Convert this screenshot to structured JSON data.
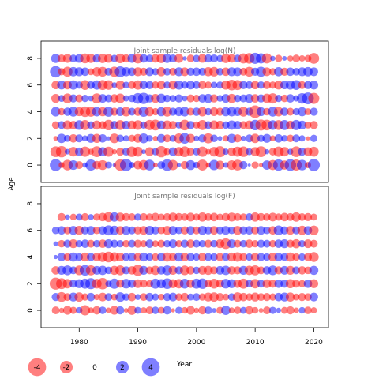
{
  "chart_data": {
    "type": "scatter",
    "encoding": "bubble grid: x = year, y = age, bubble area proportional to |residual|, red = negative, blue = positive",
    "ylabel": "Age",
    "xlabel": "Year",
    "xlim": [
      1973.5,
      2022.5
    ],
    "ylim": [
      -1.3,
      9.3
    ],
    "x_ticks": [
      1980,
      1990,
      2000,
      2010,
      2020
    ],
    "y_ticks": [
      0,
      2,
      4,
      6,
      8
    ],
    "years": [
      1976,
      1977,
      1978,
      1979,
      1980,
      1981,
      1982,
      1983,
      1984,
      1985,
      1986,
      1987,
      1988,
      1989,
      1990,
      1991,
      1992,
      1993,
      1994,
      1995,
      1996,
      1997,
      1998,
      1999,
      2000,
      2001,
      2002,
      2003,
      2004,
      2005,
      2006,
      2007,
      2008,
      2009,
      2010,
      2011,
      2012,
      2013,
      2014,
      2015,
      2016,
      2017,
      2018,
      2019,
      2020
    ],
    "colors": {
      "negative": "#ff0000",
      "positive": "#0000ff",
      "opacity": 0.5
    },
    "panels": [
      {
        "title": "Joint sample residuals log(N)",
        "ages": [
          0,
          1,
          2,
          3,
          4,
          5,
          6,
          7,
          8
        ],
        "residuals": [
          [
            3.2,
            -0.8,
            -2.5,
            2.1,
            -1.4,
            0.6,
            2.8,
            -1.6,
            -2.2,
            1.1,
            0.3,
            -2.9,
            3.4,
            0.9,
            -1.7,
            -2.3,
            2.6,
            -0.5,
            1.4,
            3.0,
            -2.4,
            0.4,
            -1.5,
            2.2,
            1.0,
            -2.7,
            -0.6,
            2.4,
            -1.8,
            0.7,
            -2.1,
            -2.6,
            1.5,
            0.2,
            -1.2,
            -0.4,
            2.0,
            -2.3,
            2.9,
            -1.9,
            3.1,
            -2.8,
            2.5,
            -0.9,
            3.3
          ],
          [
            -2.6,
            -2.9,
            0.7,
            -2.1,
            1.6,
            -2.4,
            -0.8,
            -2.7,
            1.9,
            -2.3,
            -0.6,
            -1.5,
            1.4,
            -2.5,
            -2.2,
            0.5,
            -1.8,
            1.2,
            -2.9,
            -1.1,
            1.7,
            -2.0,
            -2.6,
            -1.4,
            1.3,
            -2.4,
            -0.7,
            -2.1,
            -2.8,
            0.9,
            -1.6,
            -2.3,
            -2.5,
            1.1,
            -1.9,
            -2.7,
            0.6,
            -1.3,
            -2.4,
            -2.0,
            0.8,
            -2.6,
            1.5,
            -1.7,
            -2.2
          ],
          [
            -0.5,
            2.0,
            1.1,
            -1.6,
            1.4,
            0.8,
            1.8,
            -1.9,
            1.6,
            0.4,
            -2.1,
            1.3,
            0.9,
            -1.2,
            -1.7,
            2.2,
            1.0,
            -0.6,
            1.7,
            -1.4,
            1.1,
            -2.2,
            2.6,
            -1.8,
            0.7,
            1.5,
            -2.3,
            1.3,
            0.5,
            -0.9,
            1.9,
            -1.5,
            0.6,
            1.4,
            -2.0,
            1.2,
            1.8,
            -0.8,
            1.6,
            1.0,
            -1.3,
            1.4,
            0.9,
            -0.4,
            1.2
          ],
          [
            -1.3,
            1.4,
            -2.0,
            -1.6,
            2.1,
            -2.3,
            1.3,
            -1.9,
            -1.4,
            -2.5,
            1.6,
            -2.2,
            1.7,
            -1.8,
            -2.1,
            1.2,
            -2.4,
            -2.7,
            1.8,
            -2.0,
            -1.5,
            1.1,
            -2.6,
            1.5,
            -1.2,
            -2.3,
            1.4,
            -2.0,
            -1.7,
            1.3,
            2.0,
            1.6,
            -1.4,
            -1.9,
            2.5,
            -2.8,
            -2.6,
            2.1,
            -2.2,
            2.3,
            -1.7,
            2.4,
            1.8,
            -1.1,
            -1.5
          ],
          [
            2.1,
            -1.3,
            1.6,
            2.2,
            -1.8,
            -2.5,
            -2.3,
            2.0,
            -1.9,
            2.3,
            -1.5,
            1.7,
            -2.1,
            1.4,
            -1.6,
            2.4,
            -1.9,
            -1.2,
            1.9,
            -2.2,
            1.5,
            1.8,
            2.1,
            -1.4,
            1.6,
            -2.0,
            1.3,
            -1.7,
            -1.5,
            1.9,
            2.0,
            1.7,
            -2.2,
            1.5,
            -3.6,
            1.8,
            -1.3,
            2.2,
            -2.0,
            1.6,
            -1.4,
            1.2,
            1.9,
            -1.1,
            1.5
          ],
          [
            -1.8,
            1.1,
            -2.2,
            1.5,
            -1.4,
            1.2,
            0.8,
            -2.3,
            1.7,
            1.4,
            -1.6,
            -2.1,
            0.9,
            1.3,
            2.6,
            2.9,
            1.5,
            -1.8,
            2.0,
            1.3,
            1.1,
            1.5,
            0.8,
            -1.4,
            -1.2,
            1.6,
            1.9,
            -1.5,
            1.0,
            1.7,
            -1.9,
            1.3,
            1.4,
            1.8,
            -1.6,
            1.5,
            -2.0,
            -2.4,
            1.2,
            -1.3,
            1.6,
            0.9,
            2.5,
            3.2,
            -2.8
          ],
          [
            -1.6,
            1.8,
            -1.7,
            2.0,
            1.2,
            -2.2,
            1.4,
            2.0,
            -2.3,
            -2.1,
            0.7,
            -1.9,
            1.1,
            -1.4,
            -2.0,
            1.6,
            1.5,
            -1.3,
            -1.7,
            1.2,
            -1.8,
            1.9,
            1.3,
            1.7,
            1.4,
            -1.5,
            -1.2,
            1.0,
            1.2,
            -1.9,
            -2.6,
            -2.3,
            1.5,
            1.4,
            -1.6,
            1.3,
            -1.5,
            -1.2,
            -1.8,
            1.6,
            1.9,
            2.2,
            -1.4,
            1.5,
            1.8
          ],
          [
            3.0,
            -1.2,
            -2.3,
            2.0,
            1.8,
            1.6,
            -1.1,
            -1.9,
            -2.2,
            1.4,
            -2.4,
            2.7,
            1.9,
            1.6,
            -1.8,
            -1.5,
            1.7,
            1.2,
            -1.9,
            1.3,
            -1.4,
            1.8,
            -1.7,
            1.5,
            1.6,
            1.4,
            -1.9,
            -2.1,
            1.3,
            -1.6,
            1.8,
            1.7,
            -1.4,
            -2.2,
            1.5,
            2.3,
            -1.7,
            -1.2,
            1.9,
            -1.5,
            1.6,
            1.3,
            1.8,
            2.0,
            1.7
          ],
          [
            1.9,
            -1.4,
            -1.8,
            1.3,
            1.7,
            -2.2,
            -1.9,
            1.5,
            -2.0,
            -1.7,
            1.2,
            -2.1,
            -1.5,
            1.8,
            -2.3,
            1.6,
            1.3,
            -1.6,
            -2.0,
            1.9,
            1.4,
            -1.8,
            0.4,
            -1.3,
            1.2,
            -1.7,
            1.5,
            1.4,
            1.1,
            -2.0,
            -1.6,
            1.3,
            -2.3,
            -2.5,
            2.8,
            2.4,
            -2.3,
            0.6,
            -1.2,
            0.5,
            -0.8,
            -1.3,
            -0.9,
            -1.1,
            -2.6
          ]
        ]
      },
      {
        "title": "Joint sample residuals log(F)",
        "ages": [
          0,
          1,
          2,
          3,
          4,
          5,
          6,
          7
        ],
        "residuals": [
          [
            -1.4,
            -0.6,
            -1.8,
            -1.2,
            1.0,
            -2.4,
            -0.8,
            -1.6,
            1.3,
            -0.7,
            -1.8,
            1.5,
            -0.5,
            -1.9,
            1.1,
            -0.9,
            -1.4,
            1.3,
            -1.1,
            1.6,
            -0.4,
            1.2,
            -1.0,
            -1.7,
            -0.6,
            -1.5,
            1.4,
            0.5,
            -1.2,
            2.0,
            -0.8,
            -1.3,
            1.1,
            -1.6,
            -1.0,
            -0.5,
            -1.4,
            1.2,
            0.6,
            -1.1,
            -1.5,
            -0.7,
            1.0,
            -1.3,
            -0.9
          ],
          [
            1.5,
            -2.2,
            -1.4,
            1.8,
            -2.0,
            -1.2,
            1.6,
            -0.9,
            -1.7,
            1.4,
            -1.1,
            2.1,
            1.3,
            -1.6,
            0.8,
            -1.4,
            1.6,
            1.2,
            -1.0,
            1.5,
            1.7,
            -1.3,
            -1.6,
            1.1,
            1.4,
            -1.2,
            -1.8,
            -2.0,
            -1.5,
            -1.1,
            1.3,
            -2.1,
            -1.6,
            -1.3,
            -1.8,
            -1.4,
            -1.5,
            -1.2,
            1.6,
            1.8,
            -1.9,
            -1.1,
            -1.5,
            -1.3,
            1.7
          ],
          [
            -3.3,
            -2.7,
            -2.0,
            1.4,
            1.8,
            2.3,
            2.8,
            -2.1,
            -3.0,
            0.9,
            2.4,
            -1.5,
            2.1,
            1.6,
            -1.7,
            -1.4,
            -1.2,
            2.3,
            1.9,
            2.6,
            -1.8,
            -2.0,
            2.2,
            -1.6,
            2.3,
            2.5,
            -1.3,
            -2.2,
            -1.5,
            2.1,
            1.8,
            -1.6,
            -2.3,
            1.3,
            -2.0,
            1.4,
            -1.7,
            -1.5,
            1.6,
            1.5,
            -1.9,
            -1.4,
            -1.2,
            1.6,
            -1.8
          ],
          [
            -1.6,
            1.8,
            2.2,
            1.4,
            -2.1,
            2.6,
            -2.3,
            1.7,
            2.0,
            1.3,
            -1.9,
            -2.2,
            1.5,
            -1.6,
            -2.8,
            1.8,
            -1.4,
            -2.0,
            1.6,
            2.2,
            -1.8,
            1.5,
            -2.1,
            -1.6,
            1.3,
            -1.7,
            -1.9,
            -1.4,
            1.7,
            2.0,
            -1.6,
            -1.5,
            1.8,
            -2.0,
            -2.3,
            -1.4,
            1.6,
            2.1,
            -1.5,
            1.7,
            -1.8,
            1.4,
            -1.6,
            -1.3,
            1.9
          ],
          [
            0.4,
            1.6,
            -1.4,
            1.9,
            1.3,
            -1.8,
            1.5,
            -1.6,
            -2.2,
            -2.6,
            -2.0,
            -1.7,
            1.4,
            1.6,
            -1.5,
            1.8,
            1.3,
            -1.3,
            1.6,
            -1.9,
            -1.4,
            1.8,
            -1.6,
            1.5,
            1.2,
            -1.6,
            1.4,
            1.3,
            -1.5,
            1.4,
            -1.8,
            -2.0,
            -1.4,
            1.2,
            -1.6,
            1.5,
            1.3,
            -1.7,
            1.6,
            1.4,
            -1.9,
            -1.3,
            1.2,
            -1.5,
            -2.2
          ],
          [
            0.5,
            -1.3,
            1.5,
            -1.8,
            1.2,
            1.6,
            -1.4,
            1.3,
            -1.6,
            1.8,
            1.5,
            1.2,
            -1.3,
            1.4,
            -1.5,
            -1.2,
            1.6,
            -1.1,
            -1.4,
            1.3,
            1.7,
            -1.2,
            1.5,
            -1.6,
            1.4,
            1.2,
            -1.5,
            1.3,
            -1.8,
            -2.6,
            1.7,
            -1.4,
            1.3,
            -1.6,
            -1.2,
            1.5,
            1.4,
            -1.3,
            1.6,
            1.8,
            -1.5,
            -1.9,
            1.2,
            -1.7,
            -1.4
          ],
          [
            1.3,
            1.6,
            -1.4,
            1.8,
            -1.9,
            1.5,
            1.7,
            -1.3,
            1.6,
            2.3,
            2.0,
            -1.6,
            1.8,
            1.4,
            -1.5,
            -1.7,
            1.9,
            1.5,
            -1.3,
            -1.8,
            1.7,
            1.3,
            -1.5,
            1.6,
            -1.4,
            1.8,
            1.5,
            -1.6,
            1.4,
            1.7,
            1.3,
            -1.8,
            1.5,
            1.6,
            -1.4,
            1.7,
            1.3,
            -1.6,
            2.2,
            1.5,
            -1.7,
            1.4,
            -2.0,
            1.6,
            -2.1
          ],
          [
            0.0,
            -1.5,
            0.6,
            -1.0,
            1.1,
            -1.4,
            0.8,
            -1.2,
            -1.6,
            -2.2,
            2.0,
            -1.8,
            -1.5,
            -1.3,
            1.2,
            -1.4,
            -1.2,
            -1.6,
            -1.1,
            -1.4,
            -1.8,
            -1.5,
            -1.3,
            -1.7,
            -1.2,
            -1.9,
            -1.4,
            -1.6,
            -1.1,
            -1.5,
            -1.8,
            -1.4,
            -1.2,
            1.3,
            -1.9,
            -1.5,
            -1.3,
            -1.7,
            -1.2,
            -1.6,
            -1.4,
            -2.0,
            -1.3,
            -1.5,
            -1.1
          ]
        ]
      }
    ],
    "legend": [
      {
        "label": "-4",
        "value": -4
      },
      {
        "label": "-2",
        "value": -2
      },
      {
        "label": "0",
        "value": 0
      },
      {
        "label": "2",
        "value": 2
      },
      {
        "label": "4",
        "value": 4
      }
    ],
    "legend_title": "Year"
  }
}
